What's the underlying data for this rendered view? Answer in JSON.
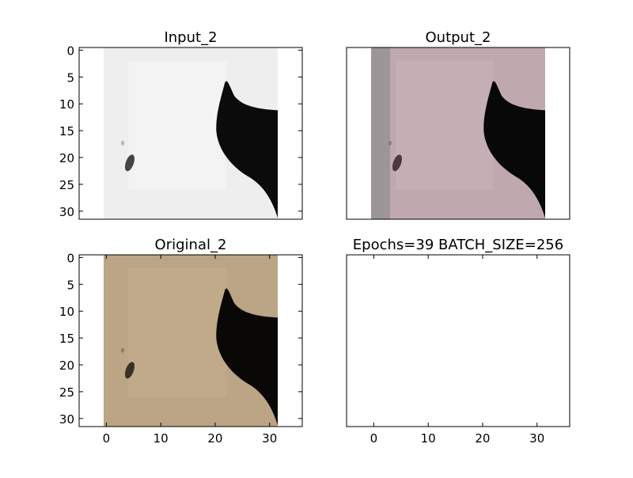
{
  "figure": {
    "background": "#ffffff"
  },
  "chart_data": [
    {
      "type": "image",
      "title": "Input_2",
      "xlim": [
        -5,
        36
      ],
      "ylim": [
        31.5,
        -0.5
      ],
      "x_ticks": [],
      "y_ticks": [
        0,
        5,
        10,
        15,
        20,
        25,
        30
      ],
      "image_extent": [
        -0.5,
        31.5
      ],
      "colors": {
        "background": "#eeeeee",
        "light": "#f7f7f7",
        "dark": "#0b0b0b",
        "spot": "#444444"
      }
    },
    {
      "type": "image",
      "title": "Output_2",
      "xlim": [
        -5,
        36
      ],
      "ylim": [
        31.5,
        -0.5
      ],
      "x_ticks": [],
      "y_ticks": [],
      "image_extent": [
        -0.5,
        31.5
      ],
      "colors": {
        "background": "#bfa9ae",
        "light": "#c9b3b8",
        "edge": "#8f8f8f",
        "dark": "#080808",
        "spot": "#4a3a3f"
      }
    },
    {
      "type": "image",
      "title": "Original_2",
      "xlim": [
        -5,
        36
      ],
      "ylim": [
        31.5,
        -0.5
      ],
      "x_ticks": [
        0,
        10,
        20,
        30
      ],
      "y_ticks": [
        0,
        5,
        10,
        15,
        20,
        25,
        30
      ],
      "image_extent": [
        -0.5,
        31.5
      ],
      "colors": {
        "background": "#bba584",
        "light": "#c4ae8e",
        "dark": "#0a0806",
        "spot": "#3a3024"
      }
    },
    {
      "type": "empty",
      "title": "Epochs=39 BATCH_SIZE=256",
      "xlim": [
        -5,
        36
      ],
      "ylim": [
        31.5,
        -0.5
      ],
      "x_ticks": [
        0,
        10,
        20,
        30
      ],
      "y_ticks": [],
      "image_extent": null,
      "colors": {}
    }
  ]
}
